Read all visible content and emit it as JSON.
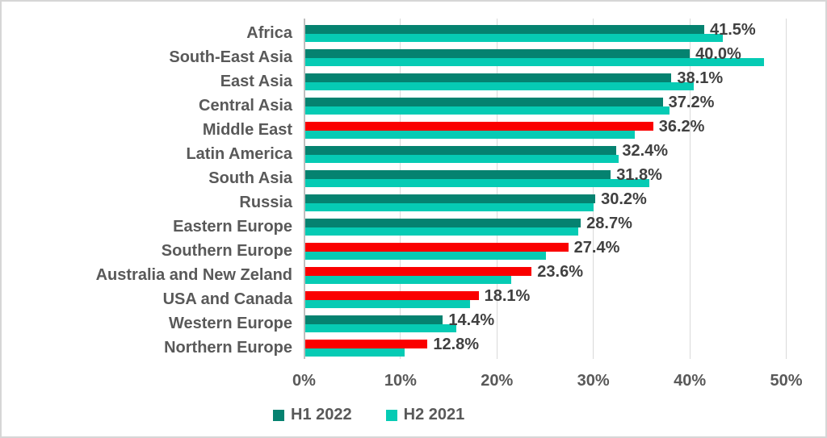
{
  "chart_data": {
    "type": "bar",
    "orientation": "horizontal",
    "title": "",
    "xlabel": "",
    "ylabel": "",
    "grid": true,
    "legend_position": "bottom",
    "xlim": [
      0,
      50
    ],
    "x_ticks": [
      "0%",
      "10%",
      "20%",
      "30%",
      "40%",
      "50%"
    ],
    "x_tick_values": [
      0,
      10,
      20,
      30,
      40,
      50
    ],
    "categories": [
      "Africa",
      "South-East Asia",
      "East Asia",
      "Central Asia",
      "Middle East",
      "Latin America",
      "South Asia",
      "Russia",
      "Eastern Europe",
      "Southern Europe",
      "Australia and New Zeland",
      "USA and Canada",
      "Western Europe",
      "Northern Europe"
    ],
    "series": [
      {
        "name": "H1 2022",
        "color": "#058270",
        "values": [
          41.5,
          40.0,
          38.1,
          37.2,
          36.2,
          32.4,
          31.8,
          30.2,
          28.7,
          27.4,
          23.6,
          18.1,
          14.4,
          12.8
        ],
        "bar_colors": [
          "#058270",
          "#058270",
          "#058270",
          "#058270",
          "#fa0000",
          "#058270",
          "#058270",
          "#058270",
          "#058270",
          "#fa0000",
          "#fa0000",
          "#fa0000",
          "#058270",
          "#fa0000"
        ]
      },
      {
        "name": "H2 2021",
        "color": "#06cbb4",
        "values": [
          43.4,
          47.7,
          40.4,
          37.9,
          34.3,
          32.6,
          35.8,
          30.0,
          28.4,
          25.1,
          21.5,
          17.2,
          15.8,
          10.4
        ]
      }
    ],
    "data_labels": [
      "41.5%",
      "40.0%",
      "38.1%",
      "37.2%",
      "36.2%",
      "32.4%",
      "31.8%",
      "30.2%",
      "28.7%",
      "27.4%",
      "23.6%",
      "18.1%",
      "14.4%",
      "12.8%"
    ]
  },
  "legend": {
    "items": [
      {
        "label": "H1 2022",
        "color": "#058270"
      },
      {
        "label": "H2 2021",
        "color": "#06cbb4"
      }
    ]
  },
  "colors": {
    "highlight_red": "#fa0000",
    "gridline": "#d9d9d9",
    "axis_line": "#bfbfbf",
    "text_gray": "#595959",
    "data_label_gray": "#404040",
    "border": "#d6d6d6",
    "background": "#ffffff"
  }
}
